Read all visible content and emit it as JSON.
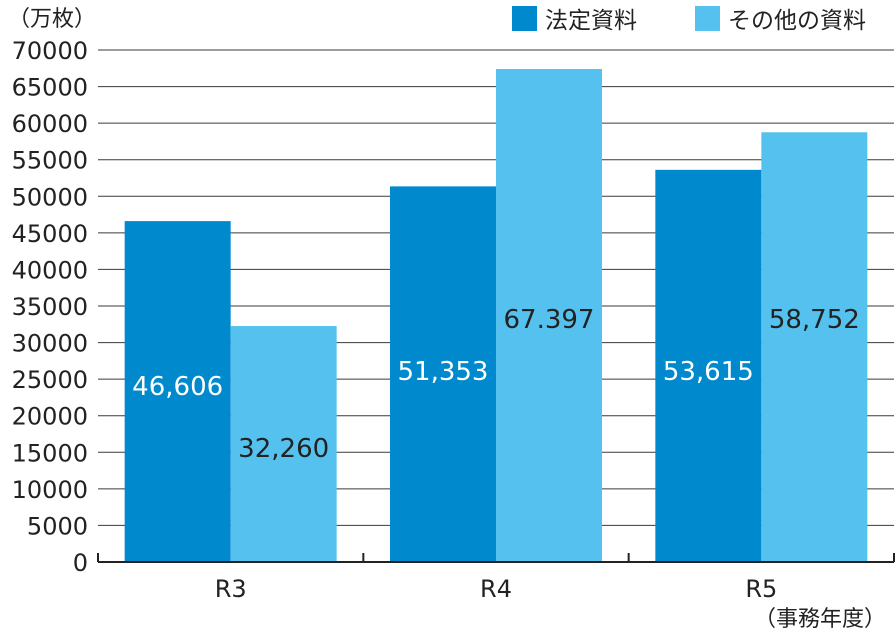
{
  "chart_data": {
    "type": "bar",
    "y_unit": "（万枚）",
    "x_unit": "（事務年度）",
    "categories": [
      "R3",
      "R4",
      "R5"
    ],
    "ylim": [
      0,
      70000
    ],
    "yticks": [
      0,
      5000,
      10000,
      15000,
      20000,
      25000,
      30000,
      35000,
      40000,
      45000,
      50000,
      55000,
      60000,
      65000,
      70000
    ],
    "grid": true,
    "legend_position": "top-right",
    "series": [
      {
        "name": "法定資料",
        "color": "#0089cc",
        "label_color": "#ffffff",
        "values": [
          46606,
          51353,
          53615
        ],
        "labels": [
          "46,606",
          "51,353",
          "53,615"
        ]
      },
      {
        "name": "その他の資料",
        "color": "#55c1ee",
        "label_color": "#222222",
        "values": [
          32260,
          67397,
          58752
        ],
        "labels": [
          "32,260",
          "67.397",
          "58,752"
        ]
      }
    ]
  }
}
